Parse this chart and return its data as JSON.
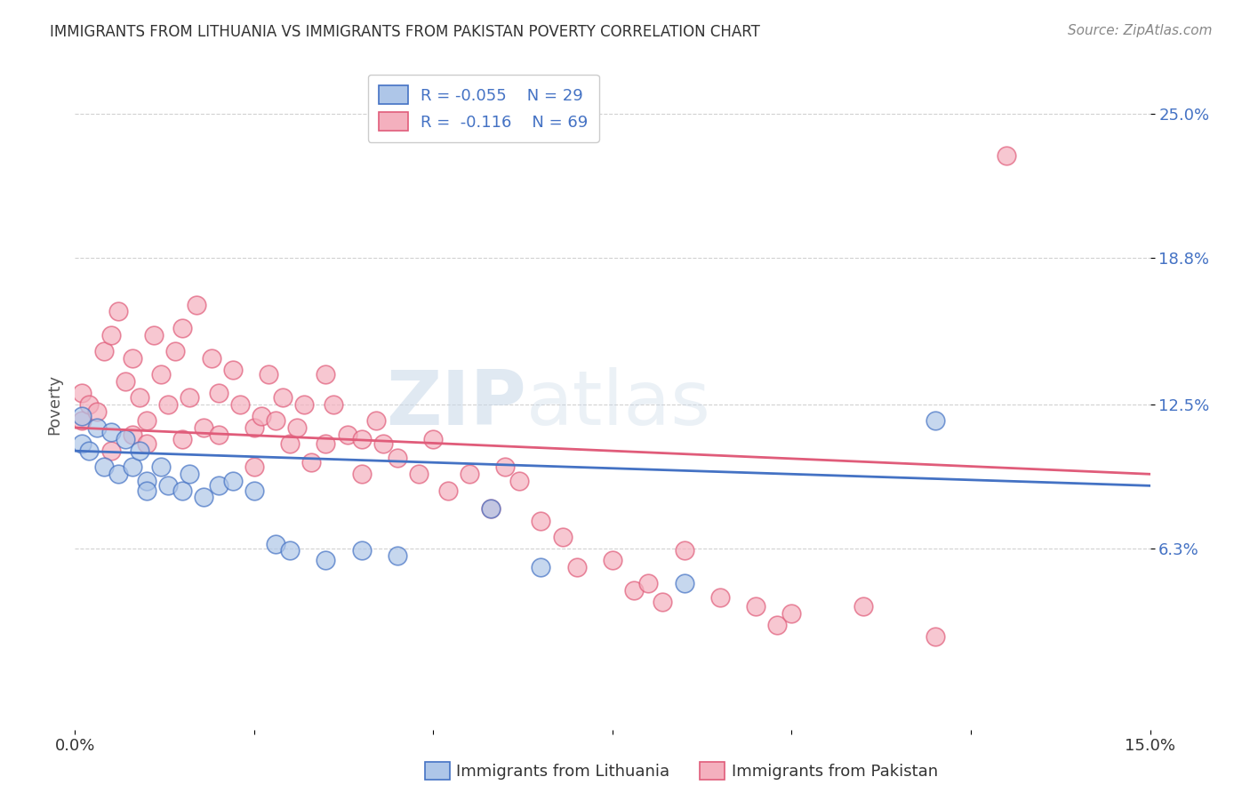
{
  "title": "IMMIGRANTS FROM LITHUANIA VS IMMIGRANTS FROM PAKISTAN POVERTY CORRELATION CHART",
  "source": "Source: ZipAtlas.com",
  "ylabel": "Poverty",
  "y_ticks": [
    0.063,
    0.125,
    0.188,
    0.25
  ],
  "y_tick_labels": [
    "6.3%",
    "12.5%",
    "18.8%",
    "25.0%"
  ],
  "xmin": 0.0,
  "xmax": 0.15,
  "ymin": -0.015,
  "ymax": 0.265,
  "lithuania_color": "#aec6e8",
  "pakistan_color": "#f4b0be",
  "lithuania_line_color": "#4472c4",
  "pakistan_line_color": "#e05c7a",
  "lithuania_x": [
    0.001,
    0.001,
    0.002,
    0.003,
    0.004,
    0.005,
    0.006,
    0.007,
    0.008,
    0.009,
    0.01,
    0.01,
    0.012,
    0.013,
    0.015,
    0.016,
    0.018,
    0.02,
    0.022,
    0.025,
    0.028,
    0.03,
    0.035,
    0.04,
    0.045,
    0.058,
    0.065,
    0.085,
    0.12
  ],
  "lithuania_y": [
    0.108,
    0.12,
    0.105,
    0.115,
    0.098,
    0.113,
    0.095,
    0.11,
    0.098,
    0.105,
    0.092,
    0.088,
    0.098,
    0.09,
    0.088,
    0.095,
    0.085,
    0.09,
    0.092,
    0.088,
    0.065,
    0.062,
    0.058,
    0.062,
    0.06,
    0.08,
    0.055,
    0.048,
    0.118
  ],
  "pakistan_x": [
    0.001,
    0.001,
    0.002,
    0.003,
    0.004,
    0.005,
    0.005,
    0.006,
    0.007,
    0.008,
    0.008,
    0.009,
    0.01,
    0.01,
    0.011,
    0.012,
    0.013,
    0.014,
    0.015,
    0.015,
    0.016,
    0.017,
    0.018,
    0.019,
    0.02,
    0.02,
    0.022,
    0.023,
    0.025,
    0.025,
    0.026,
    0.027,
    0.028,
    0.029,
    0.03,
    0.031,
    0.032,
    0.033,
    0.035,
    0.035,
    0.036,
    0.038,
    0.04,
    0.04,
    0.042,
    0.043,
    0.045,
    0.048,
    0.05,
    0.052,
    0.055,
    0.058,
    0.06,
    0.062,
    0.065,
    0.068,
    0.07,
    0.075,
    0.078,
    0.08,
    0.082,
    0.085,
    0.09,
    0.095,
    0.098,
    0.1,
    0.11,
    0.12,
    0.13
  ],
  "pakistan_y": [
    0.13,
    0.118,
    0.125,
    0.122,
    0.148,
    0.155,
    0.105,
    0.165,
    0.135,
    0.145,
    0.112,
    0.128,
    0.118,
    0.108,
    0.155,
    0.138,
    0.125,
    0.148,
    0.158,
    0.11,
    0.128,
    0.168,
    0.115,
    0.145,
    0.13,
    0.112,
    0.14,
    0.125,
    0.115,
    0.098,
    0.12,
    0.138,
    0.118,
    0.128,
    0.108,
    0.115,
    0.125,
    0.1,
    0.138,
    0.108,
    0.125,
    0.112,
    0.11,
    0.095,
    0.118,
    0.108,
    0.102,
    0.095,
    0.11,
    0.088,
    0.095,
    0.08,
    0.098,
    0.092,
    0.075,
    0.068,
    0.055,
    0.058,
    0.045,
    0.048,
    0.04,
    0.062,
    0.042,
    0.038,
    0.03,
    0.035,
    0.038,
    0.025,
    0.232
  ],
  "watermark_text": "ZIPatlas",
  "watermark_style": "ZIP",
  "bottom_legend_lithuania": "Immigrants from Lithuania",
  "bottom_legend_pakistan": "Immigrants from Pakistan"
}
